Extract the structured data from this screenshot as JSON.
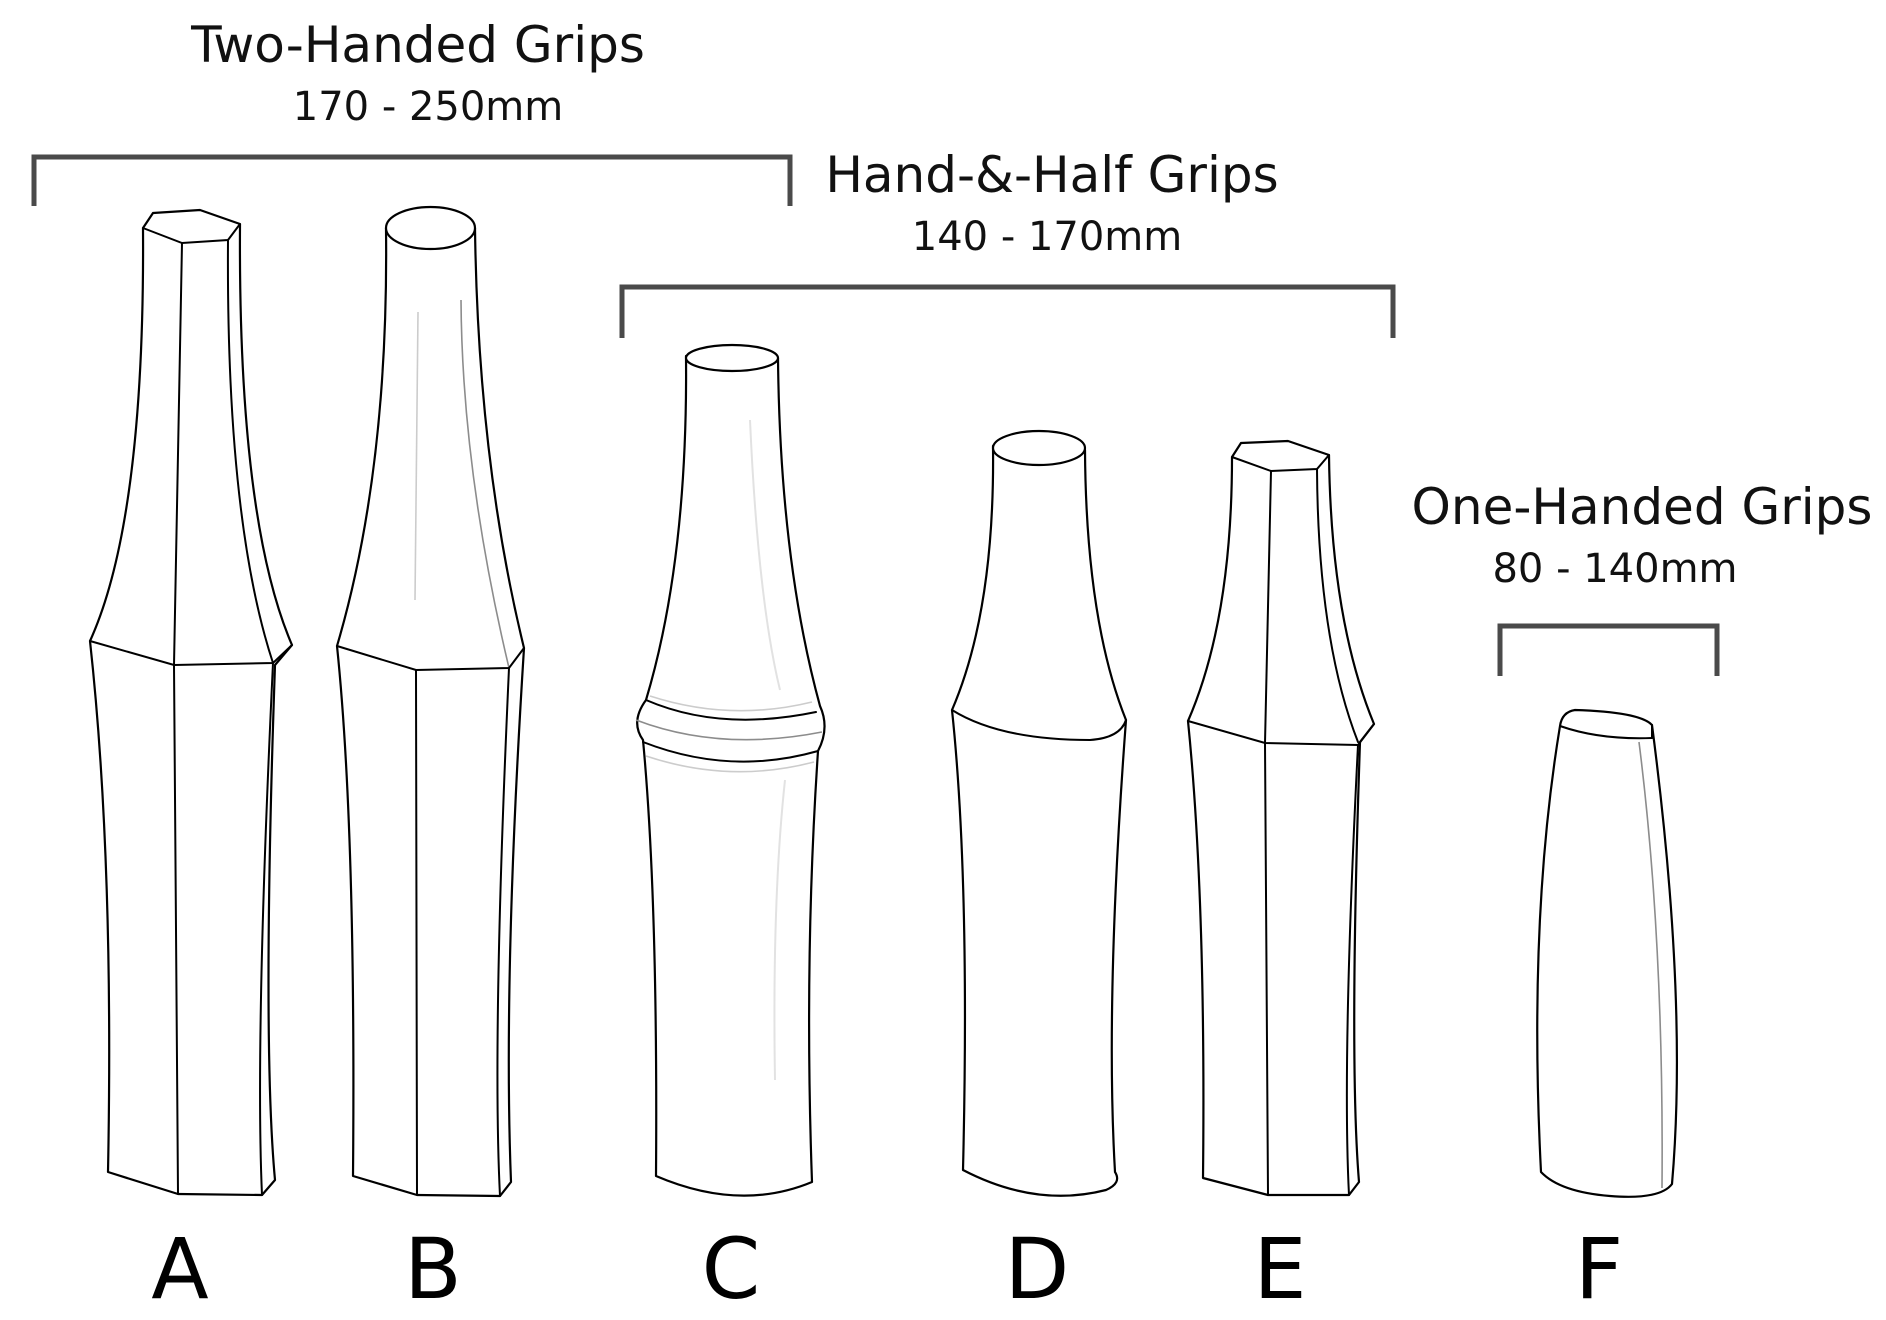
{
  "groups": [
    {
      "id": "two-handed",
      "title": "Two-Handed Grips",
      "range": "170 - 250mm"
    },
    {
      "id": "hand-and-half",
      "title": "Hand-&-Half Grips",
      "range": "140 - 170mm"
    },
    {
      "id": "one-handed",
      "title": "One-Handed Grips",
      "range": "80 - 140mm"
    }
  ],
  "grips": [
    {
      "letter": "A",
      "shape": "octagonal-waisted"
    },
    {
      "letter": "B",
      "shape": "round-top-octagonal-waisted"
    },
    {
      "letter": "C",
      "shape": "round-with-center-ring"
    },
    {
      "letter": "D",
      "shape": "round-waisted"
    },
    {
      "letter": "E",
      "shape": "octagonal-waisted"
    },
    {
      "letter": "F",
      "shape": "oval-tapered"
    }
  ],
  "colors": {
    "bracket": "#4a4a4a",
    "outline": "#000000",
    "text": "#111111"
  }
}
